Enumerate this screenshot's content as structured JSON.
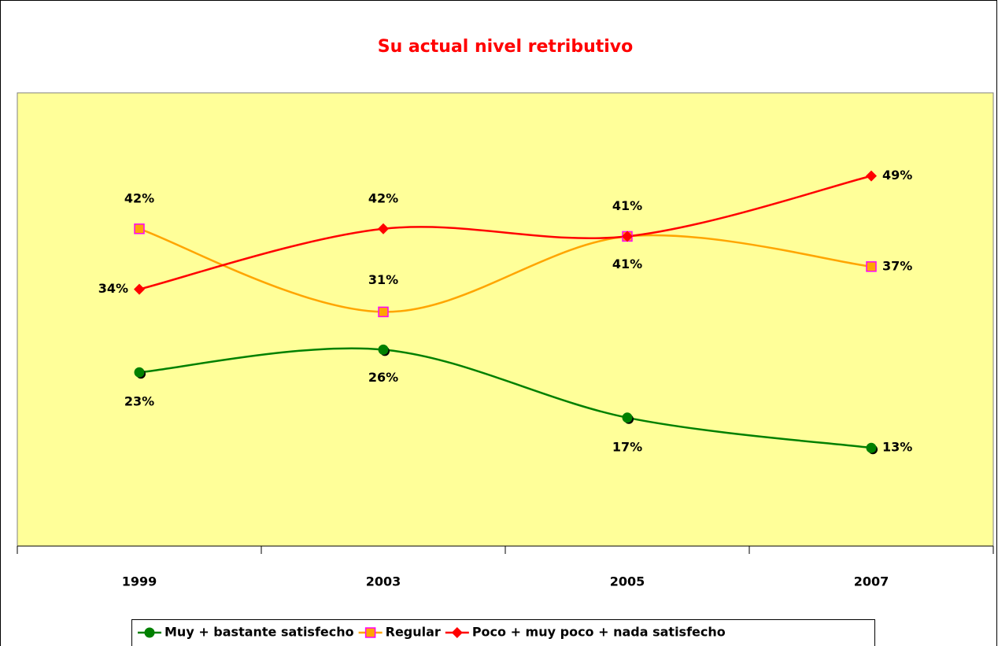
{
  "chart_data": {
    "type": "line",
    "title": "Su actual nivel retributivo",
    "categories": [
      "1999",
      "2003",
      "2005",
      "2007"
    ],
    "ylim": [
      0,
      60
    ],
    "series": [
      {
        "name": "Muy + bastante satisfecho",
        "color": "#008000",
        "marker": "circle",
        "values": [
          23,
          26,
          17,
          13
        ],
        "value_labels": [
          "23%",
          "26%",
          "17%",
          "13%"
        ]
      },
      {
        "name": "Regular",
        "color": "#ffa500",
        "marker": "square",
        "values": [
          42,
          31,
          41,
          37
        ],
        "value_labels": [
          "42%",
          "31%",
          "41%",
          "37%"
        ]
      },
      {
        "name": "Poco + muy poco + nada satisfecho",
        "color": "#ff0000",
        "marker": "diamond",
        "values": [
          34,
          42,
          41,
          49
        ],
        "value_labels": [
          "34%",
          "42%",
          "41%",
          "49%"
        ]
      }
    ],
    "legend": "bottom"
  }
}
